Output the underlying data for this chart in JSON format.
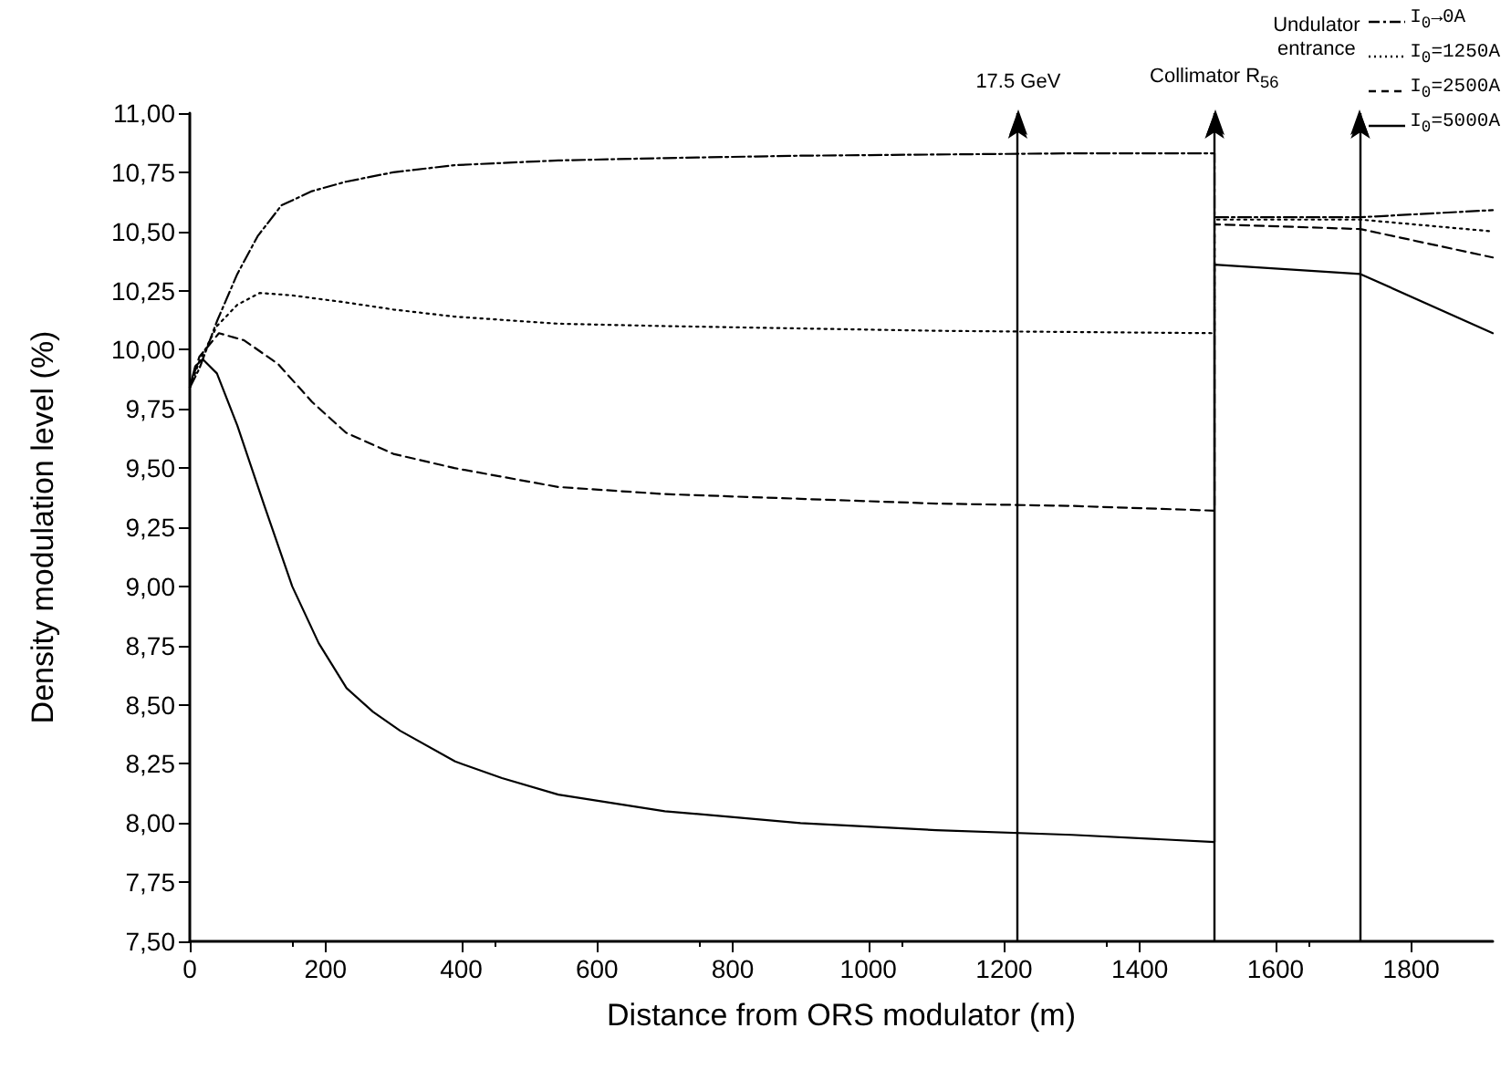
{
  "chart_data": {
    "type": "line",
    "xlabel": "Distance from ORS modulator (m)",
    "ylabel": "Density modulation level (%)",
    "xlim": [
      0,
      1920
    ],
    "xticks": [
      0,
      200,
      400,
      600,
      800,
      1000,
      1200,
      1400,
      1600,
      1800
    ],
    "ylim": [
      7.5,
      11
    ],
    "yticks": [
      {
        "value": 7.5,
        "label": "7,50"
      },
      {
        "value": 7.75,
        "label": "7,75"
      },
      {
        "value": 8,
        "label": "8,00"
      },
      {
        "value": 8.25,
        "label": "8,25"
      },
      {
        "value": 8.5,
        "label": "8,50"
      },
      {
        "value": 8.75,
        "label": "8,75"
      },
      {
        "value": 9,
        "label": "9,00"
      },
      {
        "value": 9.25,
        "label": "9,25"
      },
      {
        "value": 9.5,
        "label": "9,50"
      },
      {
        "value": 9.75,
        "label": "9,75"
      },
      {
        "value": 10,
        "label": "10,00"
      },
      {
        "value": 10.25,
        "label": "10,25"
      },
      {
        "value": 10.5,
        "label": "10,50"
      },
      {
        "value": 10.75,
        "label": "10,75"
      },
      {
        "value": 11,
        "label": "11,00"
      }
    ],
    "grid": false,
    "legend": "top right",
    "marker": "none",
    "series": [
      {
        "name": "I$_{0}$→0A",
        "color": "#000000",
        "line_style": "dashdot",
        "x": [
          0,
          14,
          40,
          70,
          100,
          135,
          180,
          230,
          300,
          390,
          543,
          700,
          900,
          1100,
          1300,
          1510,
          1510,
          1725,
          1920
        ],
        "values": [
          9.84,
          9.92,
          10.12,
          10.32,
          10.48,
          10.61,
          10.67,
          10.71,
          10.75,
          10.78,
          10.8,
          10.81,
          10.82,
          10.825,
          10.83,
          10.83,
          10.56,
          10.56,
          10.59
        ]
      },
      {
        "name": "I$_{0}$=1250A",
        "color": "#000000",
        "line_style": "dotted",
        "x": [
          0,
          14,
          40,
          70,
          103,
          150,
          230,
          300,
          390,
          543,
          700,
          900,
          1100,
          1300,
          1510,
          1510,
          1725,
          1920
        ],
        "values": [
          9.84,
          9.95,
          10.1,
          10.19,
          10.24,
          10.23,
          10.2,
          10.17,
          10.14,
          10.11,
          10.1,
          10.09,
          10.08,
          10.075,
          10.07,
          10.55,
          10.55,
          10.5
        ]
      },
      {
        "name": "I$_{0}$=2500A",
        "color": "#000000",
        "line_style": "dashed",
        "x": [
          0,
          14,
          43,
          80,
          130,
          180,
          230,
          300,
          390,
          543,
          700,
          900,
          1100,
          1300,
          1510,
          1510,
          1725,
          1920
        ],
        "values": [
          9.84,
          9.97,
          10.07,
          10.04,
          9.94,
          9.78,
          9.65,
          9.56,
          9.5,
          9.42,
          9.39,
          9.37,
          9.35,
          9.34,
          9.32,
          10.53,
          10.51,
          10.39
        ]
      },
      {
        "name": "I$_{0}$=5000A",
        "color": "#000000",
        "line_style": "solid",
        "x": [
          0,
          8,
          19,
          40,
          70,
          110,
          151,
          190,
          231,
          270,
          310,
          391,
          460,
          543,
          700,
          900,
          1100,
          1300,
          1510,
          1510,
          1725,
          1920
        ],
        "values": [
          9.84,
          9.93,
          9.96,
          9.9,
          9.68,
          9.34,
          9.0,
          8.76,
          8.57,
          8.47,
          8.39,
          8.26,
          8.19,
          8.12,
          8.05,
          8.0,
          7.97,
          7.95,
          7.92,
          10.36,
          10.32,
          10.07
        ]
      }
    ],
    "ref_lines": [
      {
        "axis": "x",
        "value": 1220,
        "label": "17.5 GeV"
      },
      {
        "axis": "x",
        "value": 1510,
        "label": "Collimator R$_{56}$"
      },
      {
        "axis": "x",
        "value": 1725,
        "label": "Undulator\nentrance"
      }
    ]
  }
}
